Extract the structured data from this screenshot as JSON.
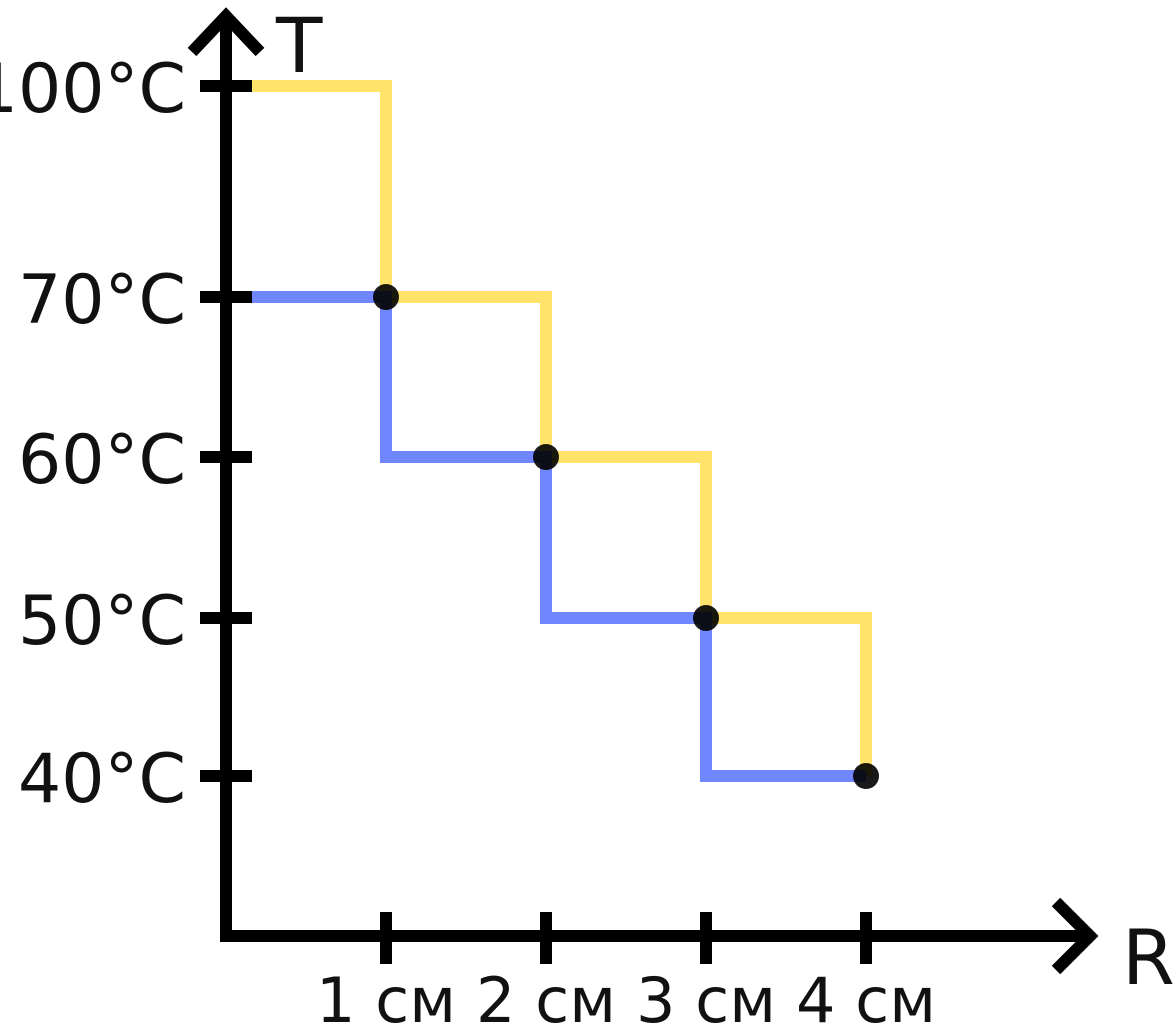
{
  "chart_data": {
    "type": "line",
    "xlabel": "R",
    "ylabel": "T",
    "x_ticks": [
      {
        "value": 1,
        "label": "1 см"
      },
      {
        "value": 2,
        "label": "2 см"
      },
      {
        "value": 3,
        "label": "3 см"
      },
      {
        "value": 4,
        "label": "4 см"
      }
    ],
    "y_ticks": [
      {
        "value": 40,
        "label": "40°C"
      },
      {
        "value": 50,
        "label": "50°C"
      },
      {
        "value": 60,
        "label": "60°C"
      },
      {
        "value": 70,
        "label": "70°C"
      },
      {
        "value": 100,
        "label": "100°C"
      }
    ],
    "series": [
      {
        "color": "#ffe36a",
        "points": [
          [
            0,
            100
          ],
          [
            1,
            100
          ],
          [
            1,
            70
          ],
          [
            2,
            70
          ],
          [
            2,
            60
          ],
          [
            3,
            60
          ],
          [
            3,
            50
          ],
          [
            4,
            50
          ],
          [
            4,
            40
          ]
        ]
      },
      {
        "color": "#6f86ff",
        "points": [
          [
            0,
            70
          ],
          [
            1,
            70
          ],
          [
            1,
            60
          ],
          [
            2,
            60
          ],
          [
            2,
            50
          ],
          [
            3,
            50
          ],
          [
            3,
            40
          ],
          [
            4,
            40
          ]
        ]
      }
    ],
    "markers": [
      [
        1,
        70
      ],
      [
        2,
        60
      ],
      [
        3,
        50
      ],
      [
        4,
        40
      ]
    ],
    "grid": false,
    "legend": "none"
  }
}
